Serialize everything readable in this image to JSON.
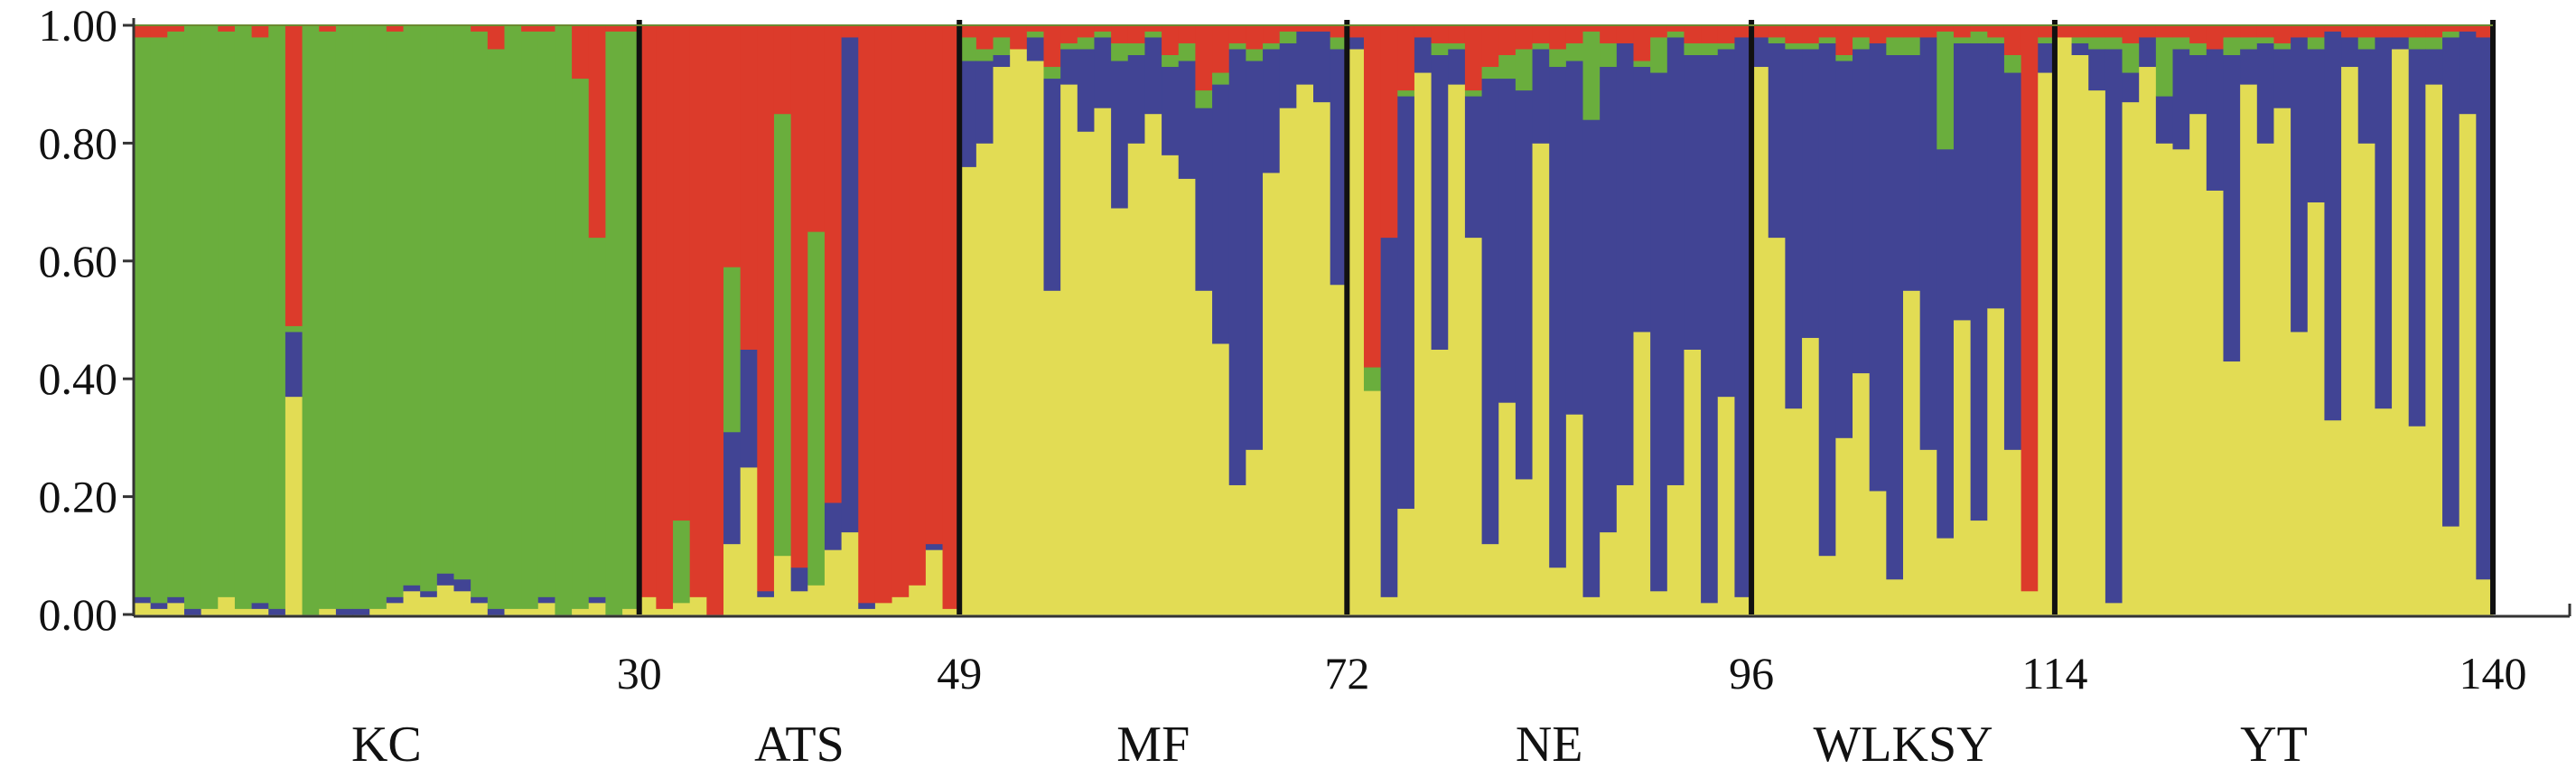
{
  "chart_data": {
    "type": "bar",
    "stacked": true,
    "n_individuals": 140,
    "ylim": [
      0,
      1
    ],
    "y_ticks": [
      "0.00",
      "0.20",
      "0.40",
      "0.60",
      "0.80",
      "1.00"
    ],
    "x_ticks": [
      "30",
      "49",
      "72",
      "96",
      "114",
      "140"
    ],
    "boundaries": [
      30,
      49,
      72,
      96,
      114,
      140
    ],
    "groups": [
      {
        "label": "KC",
        "start": 0,
        "end": 30
      },
      {
        "label": "ATS",
        "start": 30,
        "end": 49
      },
      {
        "label": "MF",
        "start": 49,
        "end": 72
      },
      {
        "label": "NE",
        "start": 72,
        "end": 96
      },
      {
        "label": "WLKSY",
        "start": 96,
        "end": 114
      },
      {
        "label": "YT",
        "start": 114,
        "end": 140
      }
    ],
    "cluster_colors": [
      "#e2dc54",
      "#414494",
      "#6aae3d",
      "#dc3b2b"
    ],
    "series": [
      {
        "values": [
          0.02,
          0.01,
          0.02,
          0.0,
          0.01,
          0.03,
          0.01,
          0.01,
          0.0,
          0.37,
          0.0,
          0.01,
          0.0,
          0.0,
          0.01,
          0.02,
          0.04,
          0.03,
          0.05,
          0.04,
          0.02,
          0.0,
          0.01,
          0.01,
          0.02,
          0.0,
          0.01,
          0.02,
          0.0,
          0.01,
          0.03,
          0.01,
          0.02,
          0.03,
          0.0,
          0.12,
          0.25,
          0.03,
          0.1,
          0.04,
          0.05,
          0.11,
          0.14,
          0.01,
          0.02,
          0.03,
          0.05,
          0.11,
          0.01,
          0.76,
          0.8,
          0.93,
          0.96,
          0.94,
          0.55,
          0.9,
          0.82,
          0.86,
          0.69,
          0.8,
          0.85,
          0.78,
          0.74,
          0.55,
          0.46,
          0.22,
          0.28,
          0.75,
          0.86,
          0.9,
          0.87,
          0.56,
          0.96,
          0.38,
          0.03,
          0.18,
          0.92,
          0.45,
          0.9,
          0.64,
          0.12,
          0.36,
          0.23,
          0.8,
          0.08,
          0.34,
          0.03,
          0.14,
          0.22,
          0.48,
          0.04,
          0.22,
          0.45,
          0.02,
          0.37,
          0.03,
          0.93,
          0.64,
          0.35,
          0.47,
          0.1,
          0.3,
          0.41,
          0.21,
          0.06,
          0.55,
          0.28,
          0.13,
          0.5,
          0.16,
          0.52,
          0.28,
          0.04,
          0.92,
          0.98,
          0.95,
          0.89,
          0.02,
          0.87,
          0.93,
          0.8,
          0.79,
          0.85,
          0.72,
          0.43,
          0.9,
          0.8,
          0.86,
          0.48,
          0.7,
          0.33,
          0.93,
          0.8,
          0.35,
          0.96,
          0.32,
          0.9,
          0.15,
          0.85,
          0.06
        ]
      },
      {
        "values": [
          0.01,
          0.01,
          0.01,
          0.01,
          0.0,
          0.0,
          0.0,
          0.01,
          0.01,
          0.11,
          0.0,
          0.0,
          0.01,
          0.01,
          0.0,
          0.01,
          0.01,
          0.01,
          0.02,
          0.02,
          0.01,
          0.01,
          0.0,
          0.0,
          0.01,
          0.0,
          0.0,
          0.01,
          0.0,
          0.0,
          0.0,
          0.0,
          0.0,
          0.0,
          0.0,
          0.19,
          0.2,
          0.01,
          0.0,
          0.04,
          0.0,
          0.08,
          0.84,
          0.01,
          0.0,
          0.0,
          0.0,
          0.01,
          0.0,
          0.18,
          0.14,
          0.02,
          0.0,
          0.04,
          0.36,
          0.06,
          0.14,
          0.12,
          0.25,
          0.15,
          0.13,
          0.15,
          0.2,
          0.31,
          0.44,
          0.74,
          0.66,
          0.21,
          0.11,
          0.09,
          0.12,
          0.4,
          0.02,
          0.0,
          0.61,
          0.7,
          0.06,
          0.5,
          0.06,
          0.24,
          0.79,
          0.55,
          0.66,
          0.16,
          0.85,
          0.6,
          0.81,
          0.79,
          0.75,
          0.45,
          0.88,
          0.76,
          0.5,
          0.93,
          0.59,
          0.95,
          0.05,
          0.33,
          0.61,
          0.49,
          0.87,
          0.64,
          0.55,
          0.76,
          0.89,
          0.4,
          0.7,
          0.66,
          0.47,
          0.81,
          0.45,
          0.64,
          0.0,
          0.05,
          0.0,
          0.02,
          0.07,
          0.94,
          0.05,
          0.05,
          0.08,
          0.17,
          0.1,
          0.24,
          0.52,
          0.06,
          0.17,
          0.1,
          0.5,
          0.26,
          0.66,
          0.05,
          0.16,
          0.63,
          0.02,
          0.64,
          0.06,
          0.83,
          0.14,
          0.92
        ]
      },
      {
        "values": [
          0.95,
          0.96,
          0.96,
          0.99,
          0.99,
          0.96,
          0.99,
          0.96,
          0.99,
          0.01,
          1.0,
          0.98,
          0.99,
          0.99,
          0.99,
          0.96,
          0.95,
          0.96,
          0.93,
          0.94,
          0.96,
          0.95,
          0.99,
          0.98,
          0.96,
          1.0,
          0.9,
          0.61,
          0.99,
          0.98,
          0.0,
          0.0,
          0.14,
          0.0,
          0.0,
          0.28,
          0.0,
          0.0,
          0.75,
          0.0,
          0.6,
          0.0,
          0.0,
          0.0,
          0.0,
          0.0,
          0.0,
          0.0,
          0.0,
          0.04,
          0.02,
          0.03,
          0.0,
          0.01,
          0.02,
          0.01,
          0.02,
          0.01,
          0.03,
          0.02,
          0.01,
          0.02,
          0.03,
          0.03,
          0.02,
          0.01,
          0.02,
          0.01,
          0.02,
          0.0,
          0.0,
          0.02,
          0.0,
          0.04,
          0.0,
          0.01,
          0.0,
          0.02,
          0.01,
          0.01,
          0.02,
          0.04,
          0.07,
          0.01,
          0.03,
          0.03,
          0.15,
          0.04,
          0.0,
          0.01,
          0.06,
          0.01,
          0.02,
          0.02,
          0.01,
          0.0,
          0.0,
          0.01,
          0.01,
          0.01,
          0.01,
          0.01,
          0.02,
          0.0,
          0.03,
          0.03,
          0.0,
          0.2,
          0.01,
          0.02,
          0.01,
          0.03,
          0.0,
          0.01,
          0.0,
          0.01,
          0.02,
          0.02,
          0.05,
          0.0,
          0.1,
          0.02,
          0.02,
          0.0,
          0.03,
          0.02,
          0.01,
          0.01,
          0.0,
          0.02,
          0.0,
          0.0,
          0.02,
          0.0,
          0.0,
          0.02,
          0.02,
          0.01,
          0.0,
          0.0
        ]
      },
      {
        "values": [
          0.02,
          0.02,
          0.01,
          0.0,
          0.0,
          0.01,
          0.0,
          0.02,
          0.0,
          0.51,
          0.0,
          0.01,
          0.0,
          0.0,
          0.0,
          0.01,
          0.0,
          0.0,
          0.0,
          0.0,
          0.01,
          0.04,
          0.0,
          0.01,
          0.01,
          0.0,
          0.09,
          0.36,
          0.01,
          0.01,
          0.97,
          0.99,
          0.84,
          0.97,
          1.0,
          0.41,
          0.55,
          0.96,
          0.15,
          0.92,
          0.35,
          0.81,
          0.02,
          0.98,
          0.98,
          0.97,
          0.95,
          0.88,
          0.99,
          0.02,
          0.04,
          0.02,
          0.04,
          0.01,
          0.07,
          0.03,
          0.02,
          0.01,
          0.03,
          0.03,
          0.01,
          0.05,
          0.03,
          0.11,
          0.08,
          0.03,
          0.04,
          0.03,
          0.01,
          0.01,
          0.01,
          0.02,
          0.02,
          0.58,
          0.36,
          0.11,
          0.02,
          0.03,
          0.03,
          0.11,
          0.07,
          0.05,
          0.04,
          0.03,
          0.04,
          0.03,
          0.01,
          0.03,
          0.03,
          0.06,
          0.02,
          0.01,
          0.03,
          0.03,
          0.03,
          0.02,
          0.02,
          0.02,
          0.03,
          0.03,
          0.02,
          0.05,
          0.02,
          0.03,
          0.02,
          0.02,
          0.02,
          0.01,
          0.02,
          0.01,
          0.02,
          0.05,
          0.96,
          0.02,
          0.02,
          0.02,
          0.02,
          0.02,
          0.03,
          0.02,
          0.02,
          0.02,
          0.03,
          0.04,
          0.02,
          0.02,
          0.02,
          0.03,
          0.02,
          0.02,
          0.01,
          0.02,
          0.02,
          0.02,
          0.02,
          0.02,
          0.02,
          0.01,
          0.01,
          0.02
        ]
      }
    ]
  }
}
